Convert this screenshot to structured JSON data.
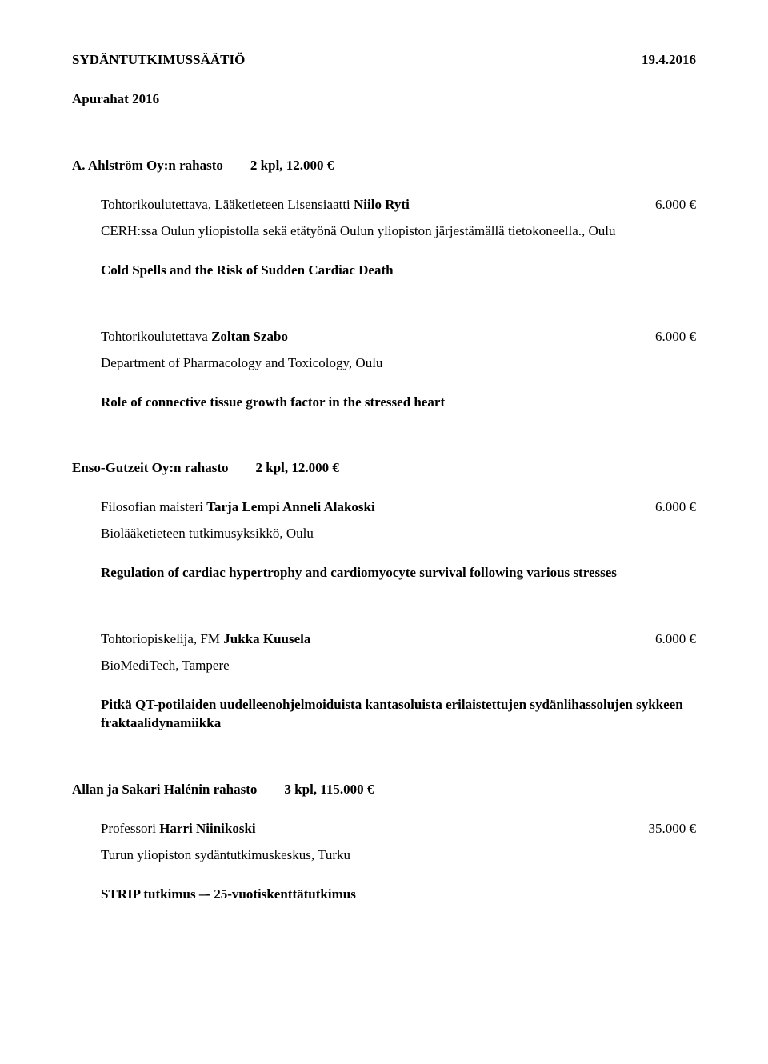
{
  "header": {
    "org": "SYDÄNTUTKIMUSSÄÄTIÖ",
    "date": "19.4.2016",
    "subtitle": "Apurahat 2016"
  },
  "funds": [
    {
      "name": "A. Ahlström Oy:n rahasto",
      "count": "2 kpl, 12.000 €",
      "grants": [
        {
          "title_prefix": "Tohtorikoulutettava, Lääketieteen Lisensiaatti ",
          "recipient": "Niilo Ryti",
          "amount": "6.000 €",
          "affil": "CERH:ssa Oulun yliopistolla sekä etätyönä Oulun yliopiston järjestämällä tietokoneella., Oulu",
          "project": "Cold Spells and the Risk of Sudden Cardiac Death"
        },
        {
          "title_prefix": "Tohtorikoulutettava ",
          "recipient": "Zoltan Szabo",
          "amount": "6.000 €",
          "affil": "Department of Pharmacology and Toxicology, Oulu",
          "project": "Role of connective tissue growth factor in the stressed heart"
        }
      ]
    },
    {
      "name": "Enso-Gutzeit Oy:n rahasto",
      "count": "2 kpl, 12.000 €",
      "grants": [
        {
          "title_prefix": "Filosofian maisteri ",
          "recipient": "Tarja Lempi Anneli Alakoski",
          "amount": "6.000 €",
          "affil": "Biolääketieteen tutkimusyksikkö, Oulu",
          "project": "Regulation of cardiac hypertrophy and cardiomyocyte survival following various stresses"
        },
        {
          "title_prefix": "Tohtoriopiskelija, FM ",
          "recipient": "Jukka Kuusela",
          "amount": "6.000 €",
          "affil": "BioMediTech, Tampere",
          "project": "Pitkä QT-potilaiden uudelleenohjelmoiduista kantasoluista erilaistettujen sydänlihassolujen sykkeen fraktaalidynamiikka"
        }
      ]
    },
    {
      "name": "Allan ja Sakari Halénin rahasto",
      "count": "3 kpl, 115.000 €",
      "grants": [
        {
          "title_prefix": "Professori ",
          "recipient": "Harri Niinikoski",
          "amount": "35.000 €",
          "affil": "Turun yliopiston sydäntutkimuskeskus, Turku",
          "project": "STRIP tutkimus –- 25-vuotiskenttätutkimus"
        }
      ]
    }
  ]
}
